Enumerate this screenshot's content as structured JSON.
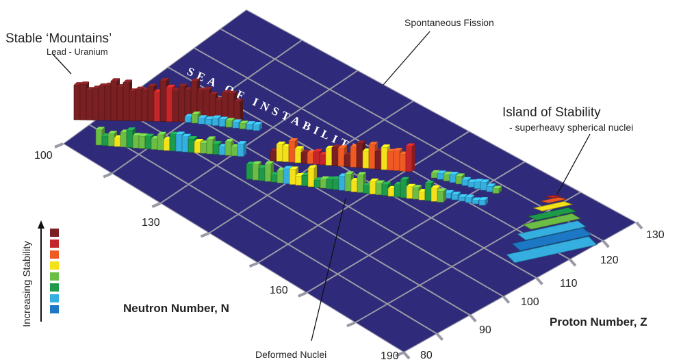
{
  "annotations": {
    "stable_mountains": "Stable ‘Mountains’",
    "lead_uranium": "Lead - Uranium",
    "spontaneous_fission": "Spontaneous Fission",
    "sea": "SEA OF INSTABILITY",
    "island_title": "Island of Stability",
    "island_sub": "- superheavy spherical nuclei",
    "deformed": "Deformed Nuclei"
  },
  "axes": {
    "neutron_label": "Neutron Number, N",
    "proton_label": "Proton Number, Z",
    "neutron_ticks": [
      "100",
      "130",
      "160",
      "190"
    ],
    "proton_ticks": [
      "80",
      "90",
      "100",
      "110",
      "120",
      "130"
    ]
  },
  "legend": {
    "title": "Increasing Stability",
    "colors": [
      "#7a1f22",
      "#c5262a",
      "#ef5a24",
      "#f3e21a",
      "#6cbd45",
      "#1d9a4a",
      "#35aee0",
      "#1c78c4"
    ]
  },
  "colors": {
    "plane": "#2f2a7a",
    "grid": "#9a9aa6"
  }
}
